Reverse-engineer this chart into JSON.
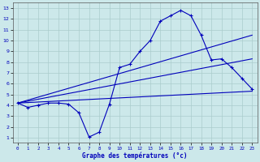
{
  "xlabel": "Graphe des températures (°c)",
  "xlim": [
    -0.5,
    23.5
  ],
  "ylim": [
    0.5,
    13.5
  ],
  "xticks": [
    0,
    1,
    2,
    3,
    4,
    5,
    6,
    7,
    8,
    9,
    10,
    11,
    12,
    13,
    14,
    15,
    16,
    17,
    18,
    19,
    20,
    21,
    22,
    23
  ],
  "yticks": [
    1,
    2,
    3,
    4,
    5,
    6,
    7,
    8,
    9,
    10,
    11,
    12,
    13
  ],
  "bg_color": "#cce8ea",
  "grid_color": "#aacccc",
  "line_color": "#0000bb",
  "curve_x": [
    0,
    1,
    2,
    3,
    4,
    5,
    6,
    7,
    8,
    9,
    10,
    11,
    12,
    13,
    14,
    15,
    16,
    17,
    18,
    19,
    20,
    21,
    22,
    23
  ],
  "curve_y": [
    4.2,
    3.8,
    4.0,
    4.2,
    4.2,
    4.1,
    3.3,
    1.05,
    1.5,
    4.1,
    7.5,
    7.8,
    9.0,
    10.0,
    11.8,
    12.3,
    12.8,
    12.3,
    10.5,
    8.2,
    8.3,
    7.5,
    6.5,
    5.5
  ],
  "trend1_x": [
    0,
    23
  ],
  "trend1_y": [
    4.2,
    10.5
  ],
  "trend2_x": [
    0,
    23
  ],
  "trend2_y": [
    4.2,
    8.3
  ],
  "trend3_x": [
    0,
    23
  ],
  "trend3_y": [
    4.2,
    5.3
  ]
}
